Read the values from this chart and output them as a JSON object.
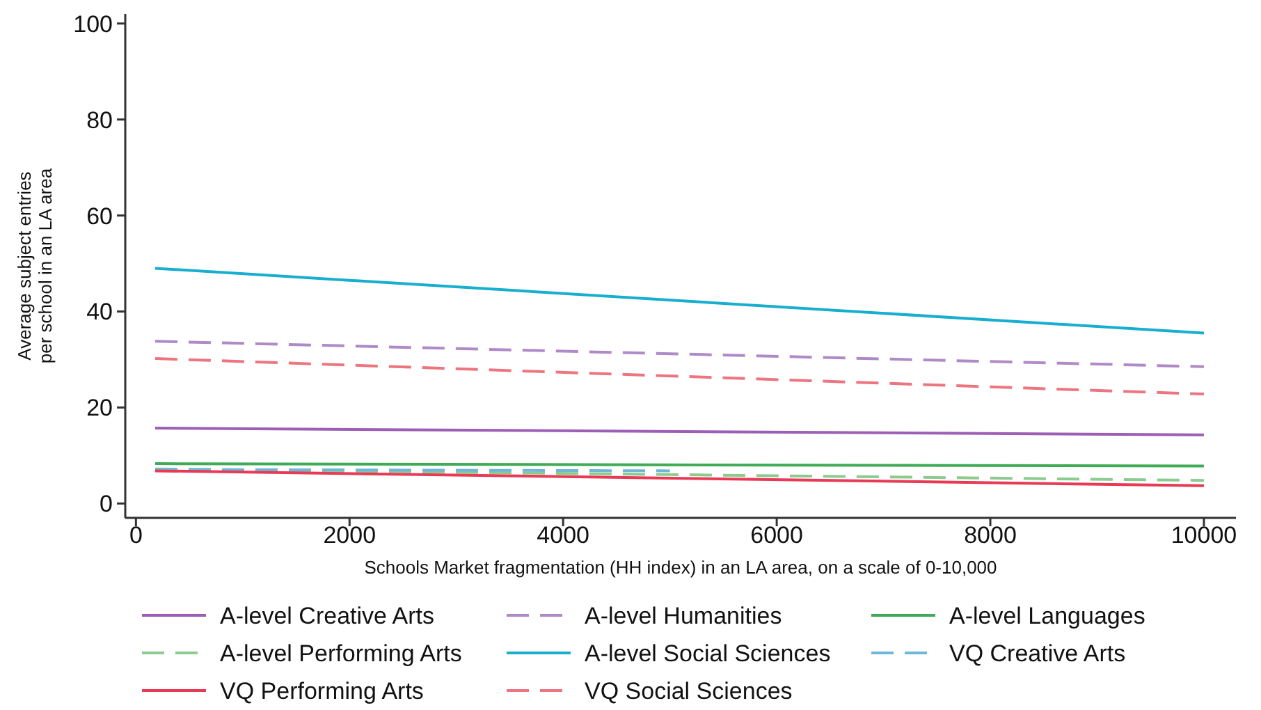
{
  "chart_data": {
    "type": "line",
    "xlabel": "Schools Market fragmentation (HH index) in an LA area, on a scale of 0-10,000",
    "ylabel": "Average subject entries\nper school in an LA area",
    "xlim": [
      -100,
      10300
    ],
    "ylim": [
      -3,
      102
    ],
    "xticks": [
      0,
      2000,
      4000,
      6000,
      8000,
      10000
    ],
    "yticks": [
      0,
      20,
      40,
      60,
      80,
      100
    ],
    "grid": false,
    "legend": "bottom",
    "marker": "none",
    "series": [
      {
        "name": "A-level Creative Arts",
        "color": "#9d5fb5",
        "line_style": "solid",
        "x": [
          180,
          10000
        ],
        "values": [
          15.7,
          14.3
        ]
      },
      {
        "name": "A-level Humanities",
        "color": "#b08ac6",
        "line_style": "dashed",
        "x": [
          180,
          10000
        ],
        "values": [
          33.8,
          28.5
        ]
      },
      {
        "name": "A-level Languages",
        "color": "#3fab55",
        "line_style": "solid",
        "x": [
          180,
          10000
        ],
        "values": [
          8.3,
          7.8
        ]
      },
      {
        "name": "A-level Performing Arts",
        "color": "#8ccb90",
        "line_style": "dashed",
        "x": [
          180,
          10000
        ],
        "values": [
          7.2,
          4.8
        ]
      },
      {
        "name": "A-level Social Sciences",
        "color": "#17aed0",
        "line_style": "solid",
        "x": [
          180,
          10000
        ],
        "values": [
          49,
          35.5
        ]
      },
      {
        "name": "VQ Creative Arts",
        "color": "#6fb7d6",
        "line_style": "dashed",
        "x": [
          180,
          5000
        ],
        "values": [
          7.1,
          6.8
        ]
      },
      {
        "name": "VQ Performing Arts",
        "color": "#e83a55",
        "line_style": "solid",
        "x": [
          180,
          10000
        ],
        "values": [
          6.8,
          3.7
        ]
      },
      {
        "name": "VQ Social Sciences",
        "color": "#ec7580",
        "line_style": "dashed",
        "x": [
          180,
          10000
        ],
        "values": [
          30.2,
          22.8
        ]
      }
    ]
  }
}
